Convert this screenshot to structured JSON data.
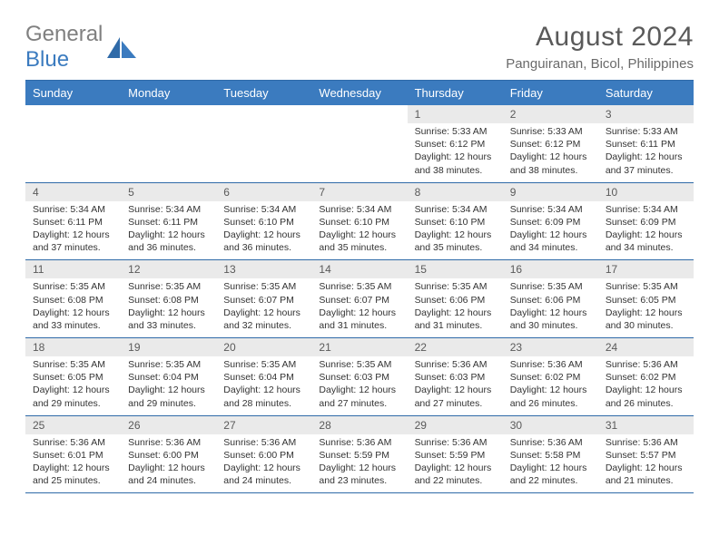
{
  "logo": {
    "text1": "General",
    "text2": "Blue"
  },
  "title": "August 2024",
  "location": "Panguiranan, Bicol, Philippines",
  "dayNames": [
    "Sunday",
    "Monday",
    "Tuesday",
    "Wednesday",
    "Thursday",
    "Friday",
    "Saturday"
  ],
  "colors": {
    "header_bg": "#3b7bbf",
    "header_border": "#2f6aa8",
    "daynum_bg": "#eaeaea",
    "text_gray": "#5a5a5a",
    "logo_gray": "#808080",
    "logo_blue": "#3b7bbf"
  },
  "weeks": [
    [
      {
        "day": "",
        "lines": []
      },
      {
        "day": "",
        "lines": []
      },
      {
        "day": "",
        "lines": []
      },
      {
        "day": "",
        "lines": []
      },
      {
        "day": "1",
        "lines": [
          "Sunrise: 5:33 AM",
          "Sunset: 6:12 PM",
          "Daylight: 12 hours",
          "and 38 minutes."
        ]
      },
      {
        "day": "2",
        "lines": [
          "Sunrise: 5:33 AM",
          "Sunset: 6:12 PM",
          "Daylight: 12 hours",
          "and 38 minutes."
        ]
      },
      {
        "day": "3",
        "lines": [
          "Sunrise: 5:33 AM",
          "Sunset: 6:11 PM",
          "Daylight: 12 hours",
          "and 37 minutes."
        ]
      }
    ],
    [
      {
        "day": "4",
        "lines": [
          "Sunrise: 5:34 AM",
          "Sunset: 6:11 PM",
          "Daylight: 12 hours",
          "and 37 minutes."
        ]
      },
      {
        "day": "5",
        "lines": [
          "Sunrise: 5:34 AM",
          "Sunset: 6:11 PM",
          "Daylight: 12 hours",
          "and 36 minutes."
        ]
      },
      {
        "day": "6",
        "lines": [
          "Sunrise: 5:34 AM",
          "Sunset: 6:10 PM",
          "Daylight: 12 hours",
          "and 36 minutes."
        ]
      },
      {
        "day": "7",
        "lines": [
          "Sunrise: 5:34 AM",
          "Sunset: 6:10 PM",
          "Daylight: 12 hours",
          "and 35 minutes."
        ]
      },
      {
        "day": "8",
        "lines": [
          "Sunrise: 5:34 AM",
          "Sunset: 6:10 PM",
          "Daylight: 12 hours",
          "and 35 minutes."
        ]
      },
      {
        "day": "9",
        "lines": [
          "Sunrise: 5:34 AM",
          "Sunset: 6:09 PM",
          "Daylight: 12 hours",
          "and 34 minutes."
        ]
      },
      {
        "day": "10",
        "lines": [
          "Sunrise: 5:34 AM",
          "Sunset: 6:09 PM",
          "Daylight: 12 hours",
          "and 34 minutes."
        ]
      }
    ],
    [
      {
        "day": "11",
        "lines": [
          "Sunrise: 5:35 AM",
          "Sunset: 6:08 PM",
          "Daylight: 12 hours",
          "and 33 minutes."
        ]
      },
      {
        "day": "12",
        "lines": [
          "Sunrise: 5:35 AM",
          "Sunset: 6:08 PM",
          "Daylight: 12 hours",
          "and 33 minutes."
        ]
      },
      {
        "day": "13",
        "lines": [
          "Sunrise: 5:35 AM",
          "Sunset: 6:07 PM",
          "Daylight: 12 hours",
          "and 32 minutes."
        ]
      },
      {
        "day": "14",
        "lines": [
          "Sunrise: 5:35 AM",
          "Sunset: 6:07 PM",
          "Daylight: 12 hours",
          "and 31 minutes."
        ]
      },
      {
        "day": "15",
        "lines": [
          "Sunrise: 5:35 AM",
          "Sunset: 6:06 PM",
          "Daylight: 12 hours",
          "and 31 minutes."
        ]
      },
      {
        "day": "16",
        "lines": [
          "Sunrise: 5:35 AM",
          "Sunset: 6:06 PM",
          "Daylight: 12 hours",
          "and 30 minutes."
        ]
      },
      {
        "day": "17",
        "lines": [
          "Sunrise: 5:35 AM",
          "Sunset: 6:05 PM",
          "Daylight: 12 hours",
          "and 30 minutes."
        ]
      }
    ],
    [
      {
        "day": "18",
        "lines": [
          "Sunrise: 5:35 AM",
          "Sunset: 6:05 PM",
          "Daylight: 12 hours",
          "and 29 minutes."
        ]
      },
      {
        "day": "19",
        "lines": [
          "Sunrise: 5:35 AM",
          "Sunset: 6:04 PM",
          "Daylight: 12 hours",
          "and 29 minutes."
        ]
      },
      {
        "day": "20",
        "lines": [
          "Sunrise: 5:35 AM",
          "Sunset: 6:04 PM",
          "Daylight: 12 hours",
          "and 28 minutes."
        ]
      },
      {
        "day": "21",
        "lines": [
          "Sunrise: 5:35 AM",
          "Sunset: 6:03 PM",
          "Daylight: 12 hours",
          "and 27 minutes."
        ]
      },
      {
        "day": "22",
        "lines": [
          "Sunrise: 5:36 AM",
          "Sunset: 6:03 PM",
          "Daylight: 12 hours",
          "and 27 minutes."
        ]
      },
      {
        "day": "23",
        "lines": [
          "Sunrise: 5:36 AM",
          "Sunset: 6:02 PM",
          "Daylight: 12 hours",
          "and 26 minutes."
        ]
      },
      {
        "day": "24",
        "lines": [
          "Sunrise: 5:36 AM",
          "Sunset: 6:02 PM",
          "Daylight: 12 hours",
          "and 26 minutes."
        ]
      }
    ],
    [
      {
        "day": "25",
        "lines": [
          "Sunrise: 5:36 AM",
          "Sunset: 6:01 PM",
          "Daylight: 12 hours",
          "and 25 minutes."
        ]
      },
      {
        "day": "26",
        "lines": [
          "Sunrise: 5:36 AM",
          "Sunset: 6:00 PM",
          "Daylight: 12 hours",
          "and 24 minutes."
        ]
      },
      {
        "day": "27",
        "lines": [
          "Sunrise: 5:36 AM",
          "Sunset: 6:00 PM",
          "Daylight: 12 hours",
          "and 24 minutes."
        ]
      },
      {
        "day": "28",
        "lines": [
          "Sunrise: 5:36 AM",
          "Sunset: 5:59 PM",
          "Daylight: 12 hours",
          "and 23 minutes."
        ]
      },
      {
        "day": "29",
        "lines": [
          "Sunrise: 5:36 AM",
          "Sunset: 5:59 PM",
          "Daylight: 12 hours",
          "and 22 minutes."
        ]
      },
      {
        "day": "30",
        "lines": [
          "Sunrise: 5:36 AM",
          "Sunset: 5:58 PM",
          "Daylight: 12 hours",
          "and 22 minutes."
        ]
      },
      {
        "day": "31",
        "lines": [
          "Sunrise: 5:36 AM",
          "Sunset: 5:57 PM",
          "Daylight: 12 hours",
          "and 21 minutes."
        ]
      }
    ]
  ]
}
